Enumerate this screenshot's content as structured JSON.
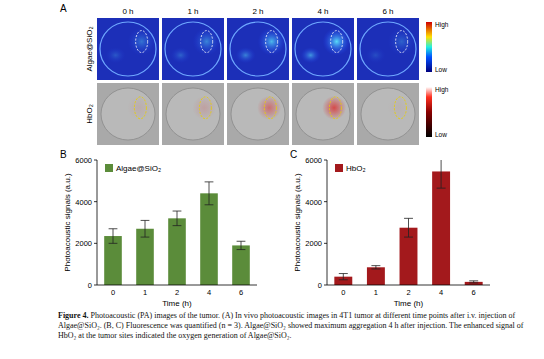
{
  "panel_labels": [
    "A",
    "B",
    "C"
  ],
  "panel_a": {
    "columns": [
      "0 h",
      "1 h",
      "2 h",
      "4 h",
      "6 h"
    ],
    "rows": [
      "Algae@SiO₂",
      "HbO₂"
    ],
    "colorbars": [
      {
        "high": "High",
        "low": "Low"
      },
      {
        "high": "High",
        "low": "Low"
      }
    ]
  },
  "chart_data": [
    {
      "type": "bar",
      "categories": [
        "0",
        "1",
        "2",
        "4",
        "6"
      ],
      "series": [
        {
          "name": "Algae@SiO₂",
          "color": "#5b8c3a",
          "values": [
            2350,
            2700,
            3200,
            4400,
            1900
          ],
          "errors": [
            350,
            400,
            350,
            550,
            200
          ]
        }
      ],
      "x_label": "Time (h)",
      "y_label": "Photoacoustic signals (a.u.)",
      "ylim": [
        0,
        6000
      ],
      "yticks": [
        0,
        2000,
        4000,
        6000
      ],
      "grid": false,
      "legend": "top-left"
    },
    {
      "type": "bar",
      "categories": [
        "0",
        "1",
        "2",
        "4",
        "6"
      ],
      "series": [
        {
          "name": "HbO₂",
          "color": "#a3191c",
          "values": [
            400,
            850,
            2750,
            5450,
            150
          ],
          "errors": [
            150,
            80,
            450,
            800,
            50
          ]
        }
      ],
      "x_label": "Time (h)",
      "y_label": "Photoacoustic signals (a.u.)",
      "ylim": [
        0,
        6000
      ],
      "yticks": [
        0,
        2000,
        4000,
        6000
      ],
      "grid": false,
      "legend": "top-left"
    }
  ],
  "caption": {
    "label": "Figure 4.",
    "text": "Photoacoustic (PA) images of the tumor. (A) In vivo photoacoustic images in 4T1 tumor at different time points after i.v. injection of Algae@SiO₂. (B, C) Fluorescence was quantified (n = 3). Algae@SiO₂ showed maximum aggregation 4 h after injection. The enhanced signal of HbO₂ at the tumor sites indicated the oxygen generation of Algae@SiO₂."
  }
}
